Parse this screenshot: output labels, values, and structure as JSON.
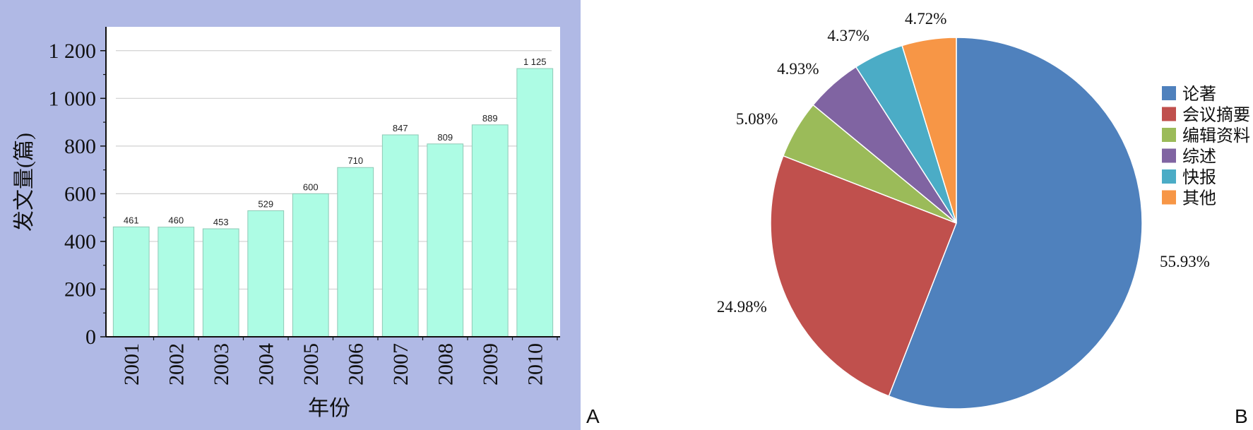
{
  "panel_labels": {
    "a": "A",
    "b": "B"
  },
  "colors": {
    "panel_bg": "#b0b9e5",
    "plot_bg": "#ffffff",
    "bar_fill": "#adfce4",
    "bar_stroke": "#8fc9b6",
    "grid": "#d0d0d0"
  },
  "chart_data": [
    {
      "type": "bar",
      "title": "",
      "xlabel": "年份",
      "ylabel": "发文量(篇)",
      "ylim": [
        0,
        1300
      ],
      "yticks": [
        {
          "value": 0,
          "label": "0"
        },
        {
          "value": 200,
          "label": "200"
        },
        {
          "value": 400,
          "label": "400"
        },
        {
          "value": 600,
          "label": "600"
        },
        {
          "value": 800,
          "label": "800"
        },
        {
          "value": 1000,
          "label": "1 000"
        },
        {
          "value": 1200,
          "label": "1 200"
        }
      ],
      "grid": true,
      "categories": [
        "2001",
        "2002",
        "2003",
        "2004",
        "2005",
        "2006",
        "2007",
        "2008",
        "2009",
        "2010"
      ],
      "values": [
        461,
        460,
        453,
        529,
        600,
        710,
        847,
        809,
        889,
        1125
      ],
      "data_labels": [
        "461",
        "460",
        "453",
        "529",
        "600",
        "710",
        "847",
        "809",
        "889",
        "1 125"
      ]
    },
    {
      "type": "pie",
      "title": "",
      "legend_position": "right",
      "slices": [
        {
          "name": "论著",
          "value": 55.93,
          "label": "55.93%",
          "color": "#4f81bd"
        },
        {
          "name": "会议摘要",
          "value": 24.98,
          "label": "24.98%",
          "color": "#c0504d"
        },
        {
          "name": "编辑资料",
          "value": 5.08,
          "label": "5.08%",
          "color": "#9bbb59"
        },
        {
          "name": "综述",
          "value": 4.93,
          "label": "4.93%",
          "color": "#8064a2"
        },
        {
          "name": "快报",
          "value": 4.37,
          "label": "4.37%",
          "color": "#4bacc6"
        },
        {
          "name": "其他",
          "value": 4.72,
          "label": "4.72%",
          "color": "#f79646"
        }
      ]
    }
  ]
}
